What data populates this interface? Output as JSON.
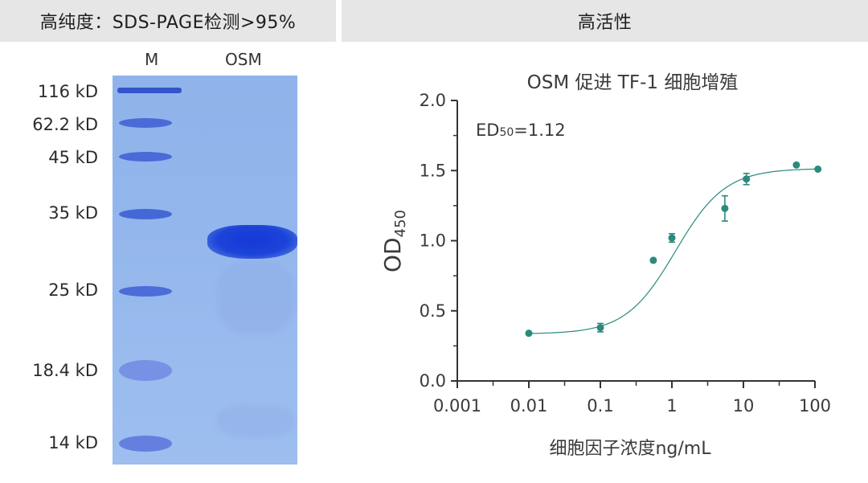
{
  "left_panel": {
    "header": "高纯度：SDS-PAGE检测>95%",
    "lanes": [
      "M",
      "OSM"
    ],
    "markers": [
      "116 kD",
      "62.2 kD",
      "45 kD",
      "35 kD",
      "25 kD",
      "18.4 kD",
      "14 kD"
    ]
  },
  "right_panel": {
    "header": "高活性"
  },
  "chart_data": {
    "type": "scatter",
    "title": "OSM 促进 TF-1 细胞增殖",
    "xlabel": "细胞因子浓度ng/mL",
    "ylabel_main": "OD",
    "ylabel_sub": "450",
    "x_scale": "log",
    "xlim": [
      0.001,
      100
    ],
    "ylim": [
      0.0,
      2.0
    ],
    "x_ticks": [
      "0.001",
      "0.01",
      "0.1",
      "1",
      "10",
      "100"
    ],
    "y_ticks": [
      "0.0",
      "0.5",
      "1.0",
      "1.5",
      "2.0"
    ],
    "annotation": {
      "prefix": "ED",
      "sub": "50",
      "suffix": "=1.12",
      "color": "#e0622a"
    },
    "series_color": "#2a8a7e",
    "points": [
      {
        "x": 0.01,
        "y": 0.34,
        "err": 0
      },
      {
        "x": 0.1,
        "y": 0.38,
        "err": 0.03
      },
      {
        "x": 0.55,
        "y": 0.86,
        "err": 0
      },
      {
        "x": 1.0,
        "y": 1.02,
        "err": 0.03
      },
      {
        "x": 5.5,
        "y": 1.23,
        "err": 0.09
      },
      {
        "x": 11.0,
        "y": 1.44,
        "err": 0.04
      },
      {
        "x": 55.0,
        "y": 1.54,
        "err": 0
      },
      {
        "x": 110.0,
        "y": 1.51,
        "err": 0
      }
    ],
    "fit": {
      "bottom": 0.335,
      "top": 1.515,
      "ec50": 1.12,
      "hill": 1.25
    }
  }
}
